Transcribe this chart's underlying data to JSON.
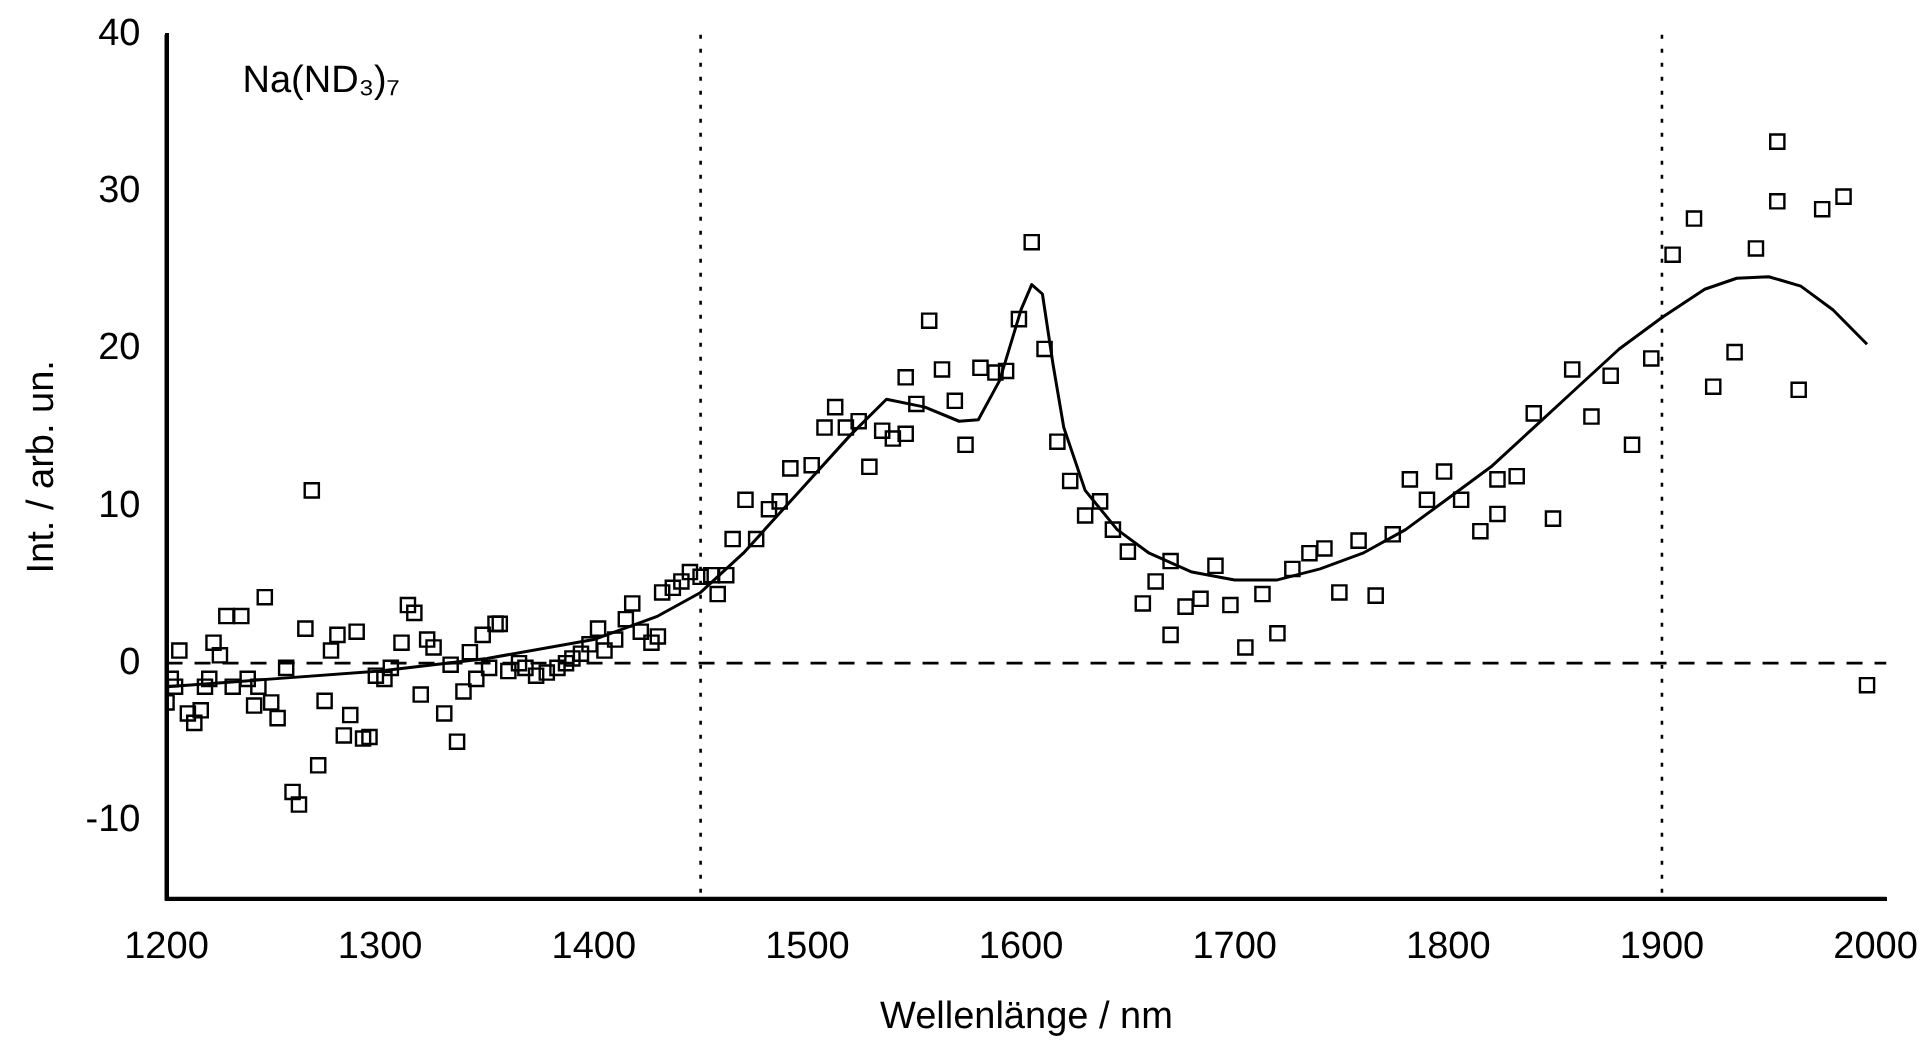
{
  "chart_data": {
    "type": "scatter",
    "xlabel": "Wellenlänge / nm",
    "ylabel": "Int. / arb. un.",
    "annotations": [
      "Na(ND₃)₇"
    ],
    "xlim": [
      1200,
      2005
    ],
    "xticks": [
      1200,
      1300,
      1400,
      1500,
      1600,
      1700,
      1800,
      1900,
      2000
    ],
    "ylim": [
      -15,
      40
    ],
    "yticks": [
      -10,
      0,
      10,
      20,
      30,
      40
    ],
    "grid": false,
    "legend": false,
    "ref_lines": [
      {
        "axis": "x",
        "value": 1450,
        "line_style": "dotted",
        "color": "#000000"
      },
      {
        "axis": "x",
        "value": 1900,
        "line_style": "dotted",
        "color": "#000000"
      },
      {
        "axis": "y",
        "value": 0,
        "line_style": "dashed",
        "color": "#000000"
      }
    ],
    "series": [
      {
        "type": "scatter",
        "marker": "square",
        "color": "#000000",
        "x": [
          1200,
          1202,
          1204,
          1206,
          1210,
          1213,
          1216,
          1218,
          1220,
          1222,
          1225,
          1228,
          1231,
          1235,
          1238,
          1241,
          1243,
          1246,
          1249,
          1252,
          1256,
          1259,
          1262,
          1265,
          1268,
          1271,
          1274,
          1277,
          1280,
          1283,
          1286,
          1289,
          1292,
          1295,
          1298,
          1302,
          1305,
          1310,
          1313,
          1316,
          1319,
          1322,
          1325,
          1330,
          1333,
          1336,
          1339,
          1342,
          1345,
          1348,
          1351,
          1354,
          1356,
          1360,
          1365,
          1368,
          1373,
          1378,
          1383,
          1387,
          1390,
          1394,
          1398,
          1402,
          1405,
          1410,
          1415,
          1418,
          1422,
          1427,
          1430,
          1432,
          1437,
          1441,
          1445,
          1450,
          1455,
          1458,
          1462,
          1465,
          1471,
          1476,
          1482,
          1487,
          1492,
          1502,
          1508,
          1513,
          1518,
          1524,
          1529,
          1535,
          1540,
          1546,
          1546,
          1551,
          1557,
          1563,
          1569,
          1574,
          1581,
          1588,
          1593,
          1599,
          1605,
          1611,
          1617,
          1623,
          1630,
          1637,
          1643,
          1650,
          1657,
          1663,
          1670,
          1670,
          1677,
          1684,
          1691,
          1698,
          1705,
          1713,
          1720,
          1727,
          1735,
          1742,
          1749,
          1758,
          1766,
          1774,
          1782,
          1790,
          1798,
          1806,
          1815,
          1823,
          1823,
          1832,
          1840,
          1849,
          1858,
          1867,
          1876,
          1886,
          1895,
          1905,
          1915,
          1924,
          1934,
          1944,
          1954,
          1954,
          1964,
          1975,
          1985,
          1996
        ],
        "values": [
          -2.5,
          -1,
          -1.5,
          0.8,
          -3.2,
          -3.8,
          -3,
          -1.5,
          -1,
          1.3,
          0.5,
          3,
          -1.5,
          3,
          -1,
          -2.7,
          -1.5,
          4.2,
          -2.5,
          -3.5,
          -0.3,
          -8.2,
          -9,
          2.2,
          11,
          -6.5,
          -2.4,
          0.8,
          1.8,
          -4.6,
          -3.3,
          2,
          -4.8,
          -4.7,
          -0.8,
          -1,
          -0.3,
          1.3,
          3.7,
          3.2,
          -2,
          1.5,
          1,
          -3.2,
          -0.1,
          -5,
          -1.8,
          0.7,
          -1,
          1.8,
          -0.3,
          2.5,
          2.5,
          -0.5,
          0,
          -0.3,
          -0.8,
          -0.6,
          -0.3,
          0,
          0.3,
          0.6,
          1.2,
          2.2,
          0.8,
          1.5,
          2.8,
          3.8,
          2,
          1.3,
          1.7,
          4.5,
          4.8,
          5.2,
          5.8,
          5.5,
          5.6,
          4.4,
          5.6,
          7.9,
          10.4,
          7.9,
          9.8,
          10.3,
          12.4,
          12.6,
          15,
          16.3,
          15,
          15.4,
          12.5,
          14.8,
          14.3,
          14.6,
          18.2,
          16.5,
          21.8,
          18.7,
          16.7,
          13.9,
          18.8,
          18.5,
          18.6,
          21.9,
          26.8,
          20,
          14.1,
          11.6,
          9.4,
          10.3,
          8.5,
          7.1,
          3.8,
          5.2,
          6.5,
          1.8,
          3.6,
          4.1,
          6.2,
          3.7,
          1,
          4.4,
          1.9,
          6,
          7,
          7.3,
          4.5,
          7.8,
          4.3,
          8.2,
          11.7,
          10.4,
          12.2,
          10.4,
          8.4,
          11.7,
          9.5,
          11.9,
          15.9,
          9.2,
          18.7,
          15.7,
          18.3,
          13.9,
          19.4,
          26,
          28.3,
          17.6,
          19.8,
          26.4,
          33.2,
          29.4,
          17.4,
          28.9,
          29.7,
          -1.4
        ]
      },
      {
        "type": "line",
        "marker": "none",
        "line_style": "solid",
        "color": "#000000",
        "x": [
          1200,
          1250,
          1300,
          1350,
          1400,
          1430,
          1450,
          1470,
          1500,
          1520,
          1537,
          1555,
          1571,
          1580,
          1590,
          1600,
          1605,
          1610,
          1615,
          1620,
          1630,
          1645,
          1660,
          1680,
          1700,
          1720,
          1740,
          1760,
          1780,
          1800,
          1820,
          1840,
          1860,
          1880,
          1900,
          1920,
          1935,
          1950,
          1965,
          1980,
          1996
        ],
        "values": [
          -1.5,
          -1,
          -0.5,
          0.3,
          1.5,
          3,
          4.5,
          7,
          11.5,
          14.5,
          16.8,
          16.3,
          15.4,
          15.5,
          18,
          22.5,
          24.1,
          23.5,
          19,
          15,
          11,
          8.5,
          7,
          5.8,
          5.3,
          5.3,
          6,
          7,
          8.5,
          10.5,
          12.5,
          15,
          17.5,
          20,
          22,
          23.8,
          24.5,
          24.6,
          24,
          22.5,
          20.3
        ]
      }
    ]
  }
}
